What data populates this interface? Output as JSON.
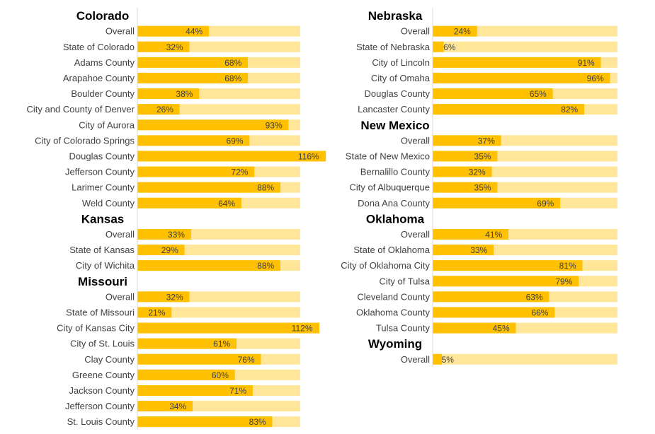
{
  "chart_data": [
    {
      "type": "bar",
      "title": "",
      "orientation": "horizontal",
      "value_format": "percent",
      "full_track_value": 100,
      "colors": {
        "bar": "#FFC000",
        "track": "#FFE699",
        "axis": "#D9D9D9"
      },
      "groups": [
        {
          "state": "Colorado",
          "categories": [
            "Overall",
            "State of Colorado",
            "Adams County",
            "Arapahoe County",
            "Boulder County",
            "City and County of Denver",
            "City of Aurora",
            "City of Colorado Springs",
            "Douglas County",
            "Jefferson County",
            "Larimer County",
            "Weld County"
          ],
          "values": [
            44,
            32,
            68,
            68,
            38,
            26,
            93,
            69,
            116,
            72,
            88,
            64
          ]
        },
        {
          "state": "Kansas",
          "categories": [
            "Overall",
            "State of Kansas",
            "City of Wichita"
          ],
          "values": [
            33,
            29,
            88
          ]
        },
        {
          "state": "Missouri",
          "categories": [
            "Overall",
            "State of Missouri",
            "City of Kansas City",
            "City of St. Louis",
            "Clay County",
            "Greene County",
            "Jackson County",
            "Jefferson County",
            "St. Louis County"
          ],
          "values": [
            32,
            21,
            112,
            61,
            76,
            60,
            71,
            34,
            83
          ]
        }
      ]
    },
    {
      "type": "bar",
      "title": "",
      "orientation": "horizontal",
      "value_format": "percent",
      "full_track_value": 100,
      "colors": {
        "bar": "#FFC000",
        "track": "#FFE699",
        "axis": "#D9D9D9"
      },
      "groups": [
        {
          "state": "Nebraska",
          "categories": [
            "Overall",
            "State of Nebraska",
            "City of Lincoln",
            "City of Omaha",
            "Douglas County",
            "Lancaster County"
          ],
          "values": [
            24,
            6,
            91,
            96,
            65,
            82
          ]
        },
        {
          "state": "New Mexico",
          "categories": [
            "Overall",
            "State of New Mexico",
            "Bernalillo County",
            "City of Albuquerque",
            "Dona Ana County"
          ],
          "values": [
            37,
            35,
            32,
            35,
            69
          ]
        },
        {
          "state": "Oklahoma",
          "categories": [
            "Overall",
            "State of Oklahoma",
            "City of Oklahoma City",
            "City of Tulsa",
            "Cleveland County",
            "Oklahoma County",
            "Tulsa County"
          ],
          "values": [
            41,
            33,
            81,
            79,
            63,
            66,
            45
          ]
        },
        {
          "state": "Wyoming",
          "categories": [
            "Overall"
          ],
          "values": [
            5
          ]
        }
      ]
    }
  ]
}
